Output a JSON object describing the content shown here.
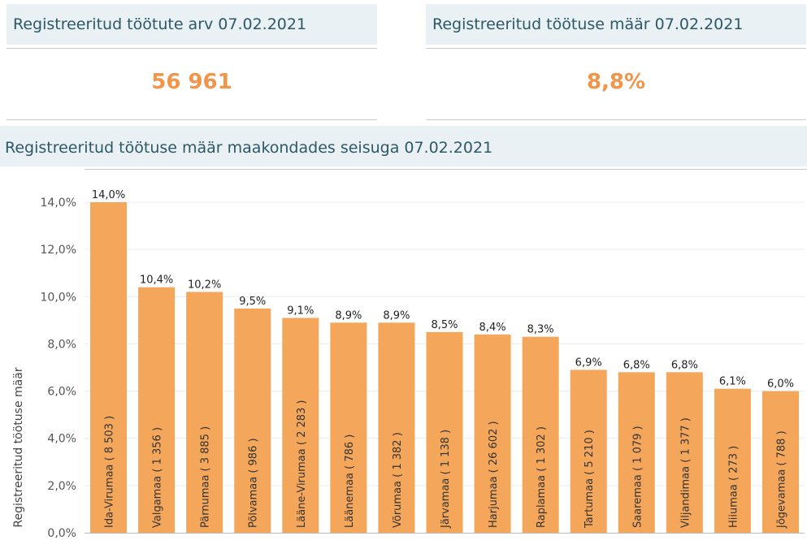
{
  "kpi": {
    "left": {
      "title": "Registreeritud töötute arv 07.02.2021",
      "value": "56 961"
    },
    "right": {
      "title": "Registreeritud töötuse määr 07.02.2021",
      "value": "8,8%"
    }
  },
  "chart_title": "Registreeritud töötuse määr maakondades seisuga 07.02.2021",
  "colors": {
    "bar": "#f4a65a",
    "accent": "#f0954a",
    "header_bg": "#e9f1f4",
    "header_text": "#2d5866"
  },
  "chart_data": {
    "type": "bar",
    "title": "Registreeritud töötuse määr maakondades seisuga 07.02.2021",
    "xlabel": "",
    "ylabel": "Registreeritud töötuse määr",
    "ylim": [
      0,
      14.4
    ],
    "yticks": [
      "0,0%",
      "2,0%",
      "4,0%",
      "6,0%",
      "8,0%",
      "10,0%",
      "12,0%",
      "14,0%"
    ],
    "grid": true,
    "categories": [
      "Ida-Virumaa ( 8 503 )",
      "Valgamaa ( 1 356 )",
      "Pärnumaa ( 3 885 )",
      "Põlvamaa ( 986 )",
      "Lääne-Virumaa ( 2 283 )",
      "Läänemaa ( 786 )",
      "Võrumaa ( 1 382 )",
      "Järvamaa ( 1 138 )",
      "Harjumaa ( 26 602 )",
      "Raplamaa ( 1 302 )",
      "Tartumaa ( 5 210 )",
      "Saaremaa ( 1 079 )",
      "Viljandimaa ( 1 377 )",
      "Hiiumaa ( 273 )",
      "Jõgevamaa ( 788 )"
    ],
    "values": [
      14.0,
      10.4,
      10.2,
      9.5,
      9.1,
      8.9,
      8.9,
      8.5,
      8.4,
      8.3,
      6.9,
      6.8,
      6.8,
      6.1,
      6.0
    ],
    "value_labels": [
      "14,0%",
      "10,4%",
      "10,2%",
      "9,5%",
      "9,1%",
      "8,9%",
      "8,9%",
      "8,5%",
      "8,4%",
      "8,3%",
      "6,9%",
      "6,8%",
      "6,8%",
      "6,1%",
      "6,0%"
    ]
  }
}
